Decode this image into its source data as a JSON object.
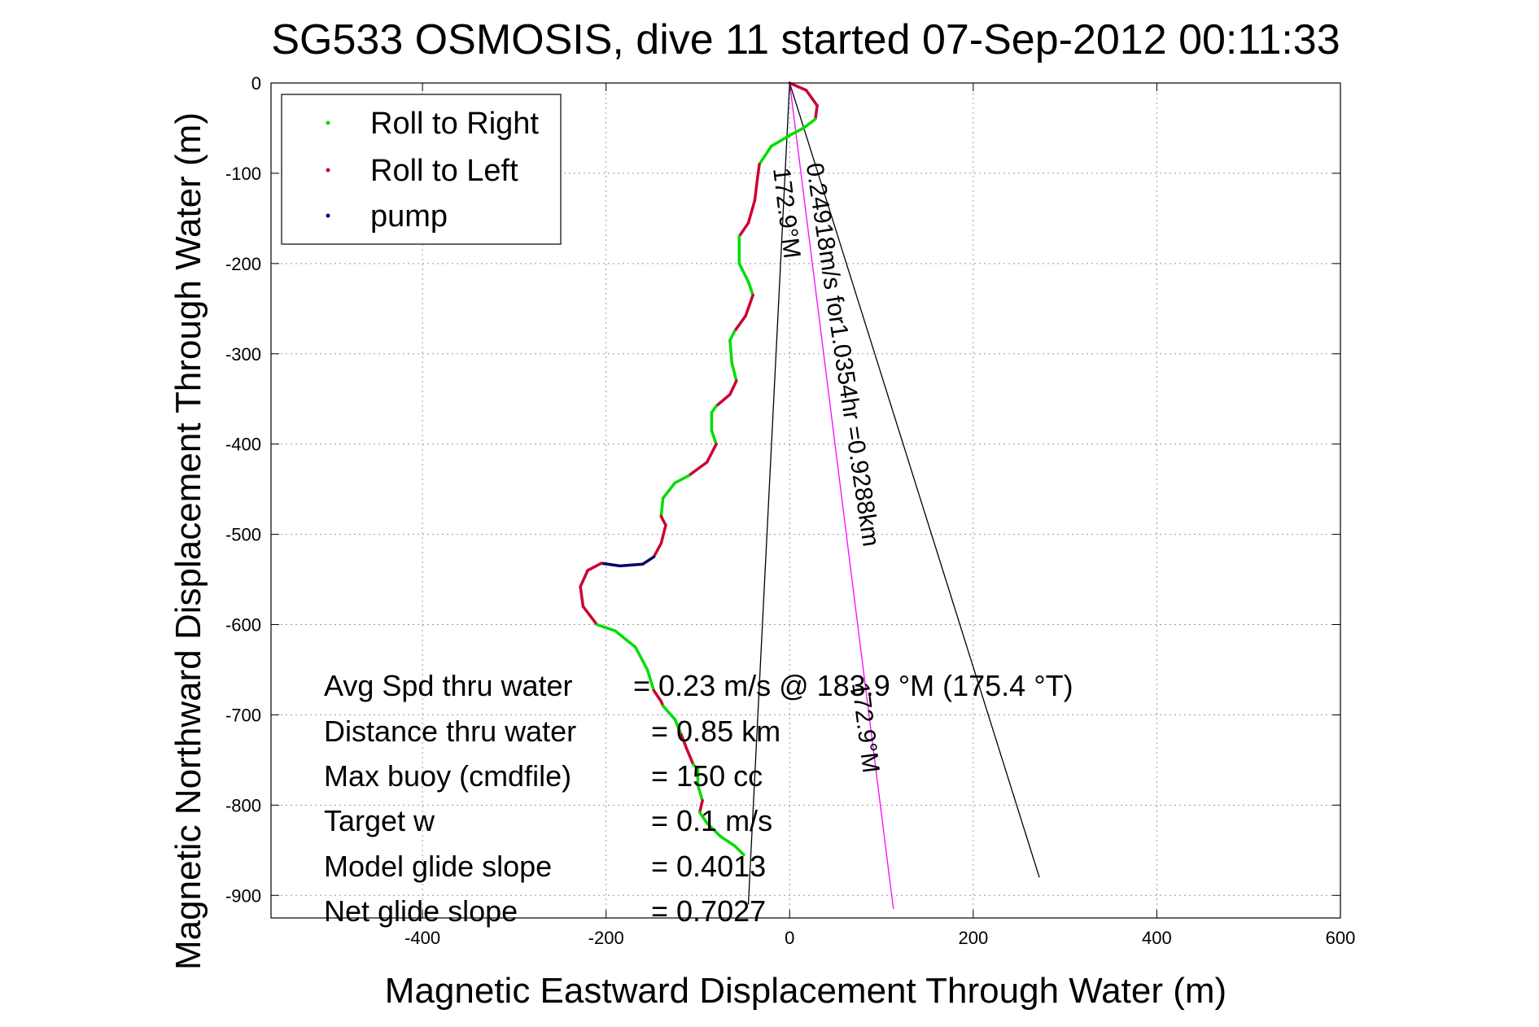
{
  "chart_data": {
    "type": "line",
    "title": "SG533 OSMOSIS, dive 11 started 07-Sep-2012 00:11:33",
    "xlabel": "Magnetic Eastward Displacement Through Water (m)",
    "ylabel": "Magnetic Northward Displacement Through Water (m)",
    "xlim": [
      -565,
      600
    ],
    "ylim": [
      -925,
      0
    ],
    "xticks": [
      -400,
      -200,
      0,
      200,
      400,
      600
    ],
    "yticks": [
      0,
      -100,
      -200,
      -300,
      -400,
      -500,
      -600,
      -700,
      -800,
      -900
    ],
    "xtick_labels": [
      "-400",
      "-200",
      "0",
      "200",
      "400",
      "600"
    ],
    "ytick_labels": [
      "0",
      "-100",
      "-200",
      "-300",
      "-400",
      "-500",
      "-600",
      "-700",
      "-800",
      "-900"
    ],
    "grid": true,
    "legend_position": "top-left",
    "legend": [
      {
        "name": "Roll to Right",
        "color": "#00dd00"
      },
      {
        "name": "Roll to Left",
        "color": "#cc0033"
      },
      {
        "name": "pump",
        "color": "#000066"
      }
    ],
    "track": [
      {
        "x": 0,
        "y": 0,
        "s": "L"
      },
      {
        "x": 18,
        "y": -8,
        "s": "L"
      },
      {
        "x": 30,
        "y": -25,
        "s": "L"
      },
      {
        "x": 28,
        "y": -40,
        "s": "L"
      },
      {
        "x": 15,
        "y": -50,
        "s": "R"
      },
      {
        "x": 0,
        "y": -58,
        "s": "R"
      },
      {
        "x": -20,
        "y": -70,
        "s": "R"
      },
      {
        "x": -33,
        "y": -90,
        "s": "R"
      },
      {
        "x": -35,
        "y": -105,
        "s": "L"
      },
      {
        "x": -38,
        "y": -130,
        "s": "L"
      },
      {
        "x": -45,
        "y": -155,
        "s": "L"
      },
      {
        "x": -55,
        "y": -170,
        "s": "L"
      },
      {
        "x": -55,
        "y": -200,
        "s": "R"
      },
      {
        "x": -45,
        "y": -220,
        "s": "R"
      },
      {
        "x": -40,
        "y": -235,
        "s": "R"
      },
      {
        "x": -48,
        "y": -258,
        "s": "L"
      },
      {
        "x": -60,
        "y": -275,
        "s": "L"
      },
      {
        "x": -65,
        "y": -285,
        "s": "R"
      },
      {
        "x": -63,
        "y": -310,
        "s": "R"
      },
      {
        "x": -58,
        "y": -330,
        "s": "R"
      },
      {
        "x": -65,
        "y": -345,
        "s": "L"
      },
      {
        "x": -80,
        "y": -358,
        "s": "L"
      },
      {
        "x": -85,
        "y": -365,
        "s": "R"
      },
      {
        "x": -85,
        "y": -385,
        "s": "R"
      },
      {
        "x": -80,
        "y": -400,
        "s": "R"
      },
      {
        "x": -90,
        "y": -420,
        "s": "L"
      },
      {
        "x": -110,
        "y": -435,
        "s": "L"
      },
      {
        "x": -125,
        "y": -443,
        "s": "R"
      },
      {
        "x": -138,
        "y": -460,
        "s": "R"
      },
      {
        "x": -140,
        "y": -480,
        "s": "R"
      },
      {
        "x": -135,
        "y": -490,
        "s": "L"
      },
      {
        "x": -140,
        "y": -510,
        "s": "L"
      },
      {
        "x": -148,
        "y": -525,
        "s": "L"
      },
      {
        "x": -160,
        "y": -533,
        "s": "P"
      },
      {
        "x": -185,
        "y": -535,
        "s": "P"
      },
      {
        "x": -205,
        "y": -532,
        "s": "P"
      },
      {
        "x": -220,
        "y": -540,
        "s": "L"
      },
      {
        "x": -228,
        "y": -558,
        "s": "L"
      },
      {
        "x": -225,
        "y": -580,
        "s": "L"
      },
      {
        "x": -210,
        "y": -600,
        "s": "L"
      },
      {
        "x": -190,
        "y": -607,
        "s": "R"
      },
      {
        "x": -168,
        "y": -625,
        "s": "R"
      },
      {
        "x": -155,
        "y": -650,
        "s": "R"
      },
      {
        "x": -148,
        "y": -673,
        "s": "R"
      },
      {
        "x": -140,
        "y": -685,
        "s": "L"
      },
      {
        "x": -138,
        "y": -690,
        "s": "L"
      },
      {
        "x": -125,
        "y": -705,
        "s": "R"
      },
      {
        "x": -118,
        "y": -722,
        "s": "R"
      },
      {
        "x": -112,
        "y": -738,
        "s": "L"
      },
      {
        "x": -105,
        "y": -755,
        "s": "L"
      },
      {
        "x": -100,
        "y": -760,
        "s": "R"
      },
      {
        "x": -100,
        "y": -778,
        "s": "R"
      },
      {
        "x": -95,
        "y": -795,
        "s": "R"
      },
      {
        "x": -98,
        "y": -808,
        "s": "L"
      },
      {
        "x": -90,
        "y": -820,
        "s": "R"
      },
      {
        "x": -75,
        "y": -835,
        "s": "R"
      },
      {
        "x": -60,
        "y": -845,
        "s": "R"
      },
      {
        "x": -50,
        "y": -855,
        "s": "R"
      }
    ],
    "lines": [
      {
        "name": "wedge-left",
        "color": "#000000",
        "points": [
          [
            0,
            0
          ],
          [
            -45,
            -910
          ]
        ]
      },
      {
        "name": "wedge-right",
        "color": "#000000",
        "points": [
          [
            0,
            0
          ],
          [
            272,
            -880
          ]
        ]
      },
      {
        "name": "current-vector",
        "color": "#ff00ff",
        "points": [
          [
            0,
            0
          ],
          [
            113,
            -915
          ]
        ]
      }
    ],
    "annotations": [
      {
        "text": "0.24918m/s for1.0354hr =0.9288km",
        "x": 18,
        "y": -90,
        "angle": 81.5
      },
      {
        "text": "172.9°M",
        "x": -18,
        "y": -95,
        "angle": 83
      },
      {
        "text": "172.9°M",
        "x": 68,
        "y": -665,
        "angle": 83
      }
    ],
    "stats": [
      {
        "label": "Avg Spd thru water",
        "value": "=  0.23 m/s @ 183.9 °M (175.4 °T)"
      },
      {
        "label": "Distance thru water",
        "value": "=  0.85 km"
      },
      {
        "label": "Max buoy (cmdfile)",
        "value": "= 150 cc"
      },
      {
        "label": "Target w",
        "value": "= 0.1 m/s"
      },
      {
        "label": "Model glide slope",
        "value": "= 0.4013"
      },
      {
        "label": "Net glide slope",
        "value": "= 0.7027"
      }
    ]
  }
}
